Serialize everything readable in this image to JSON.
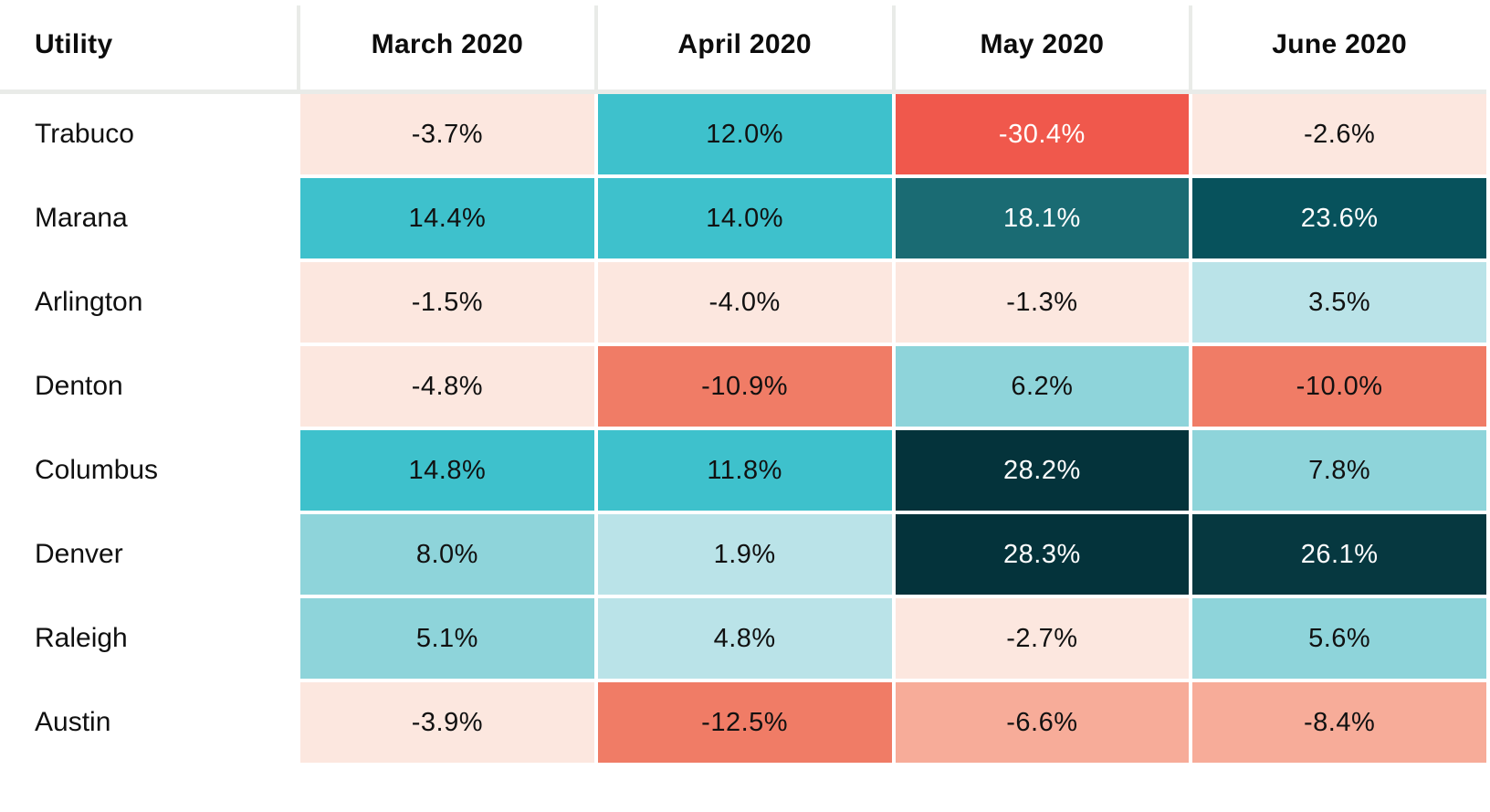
{
  "table": {
    "columns": [
      "Utility",
      "March 2020",
      "April 2020",
      "May 2020",
      "June 2020"
    ],
    "rows": [
      {
        "utility": "Trabuco",
        "cells": [
          {
            "value": "-3.7%",
            "bg": "#fce7df",
            "fg": "#111111"
          },
          {
            "value": "12.0%",
            "bg": "#3ec1cc",
            "fg": "#111111"
          },
          {
            "value": "-30.4%",
            "bg": "#f0584c",
            "fg": "#ffffff"
          },
          {
            "value": "-2.6%",
            "bg": "#fce7df",
            "fg": "#111111"
          }
        ]
      },
      {
        "utility": "Marana",
        "cells": [
          {
            "value": "14.4%",
            "bg": "#3ec1cc",
            "fg": "#111111"
          },
          {
            "value": "14.0%",
            "bg": "#3ec1cc",
            "fg": "#111111"
          },
          {
            "value": "18.1%",
            "bg": "#1a6b73",
            "fg": "#ffffff"
          },
          {
            "value": "23.6%",
            "bg": "#07525c",
            "fg": "#ffffff"
          }
        ]
      },
      {
        "utility": "Arlington",
        "cells": [
          {
            "value": "-1.5%",
            "bg": "#fce7df",
            "fg": "#111111"
          },
          {
            "value": "-4.0%",
            "bg": "#fce7df",
            "fg": "#111111"
          },
          {
            "value": "-1.3%",
            "bg": "#fce7df",
            "fg": "#111111"
          },
          {
            "value": "3.5%",
            "bg": "#bae3e8",
            "fg": "#111111"
          }
        ]
      },
      {
        "utility": "Denton",
        "cells": [
          {
            "value": "-4.8%",
            "bg": "#fce7df",
            "fg": "#111111"
          },
          {
            "value": "-10.9%",
            "bg": "#f07c66",
            "fg": "#111111"
          },
          {
            "value": "6.2%",
            "bg": "#8ed4da",
            "fg": "#111111"
          },
          {
            "value": "-10.0%",
            "bg": "#f07c66",
            "fg": "#111111"
          }
        ]
      },
      {
        "utility": "Columbus",
        "cells": [
          {
            "value": "14.8%",
            "bg": "#3ec1cc",
            "fg": "#111111"
          },
          {
            "value": "11.8%",
            "bg": "#3ec1cc",
            "fg": "#111111"
          },
          {
            "value": "28.2%",
            "bg": "#04333b",
            "fg": "#ffffff"
          },
          {
            "value": "7.8%",
            "bg": "#8ed4da",
            "fg": "#111111"
          }
        ]
      },
      {
        "utility": "Denver",
        "cells": [
          {
            "value": "8.0%",
            "bg": "#8ed4da",
            "fg": "#111111"
          },
          {
            "value": "1.9%",
            "bg": "#bae3e8",
            "fg": "#111111"
          },
          {
            "value": "28.3%",
            "bg": "#04333b",
            "fg": "#ffffff"
          },
          {
            "value": "26.1%",
            "bg": "#063840",
            "fg": "#ffffff"
          }
        ]
      },
      {
        "utility": "Raleigh",
        "cells": [
          {
            "value": "5.1%",
            "bg": "#8ed4da",
            "fg": "#111111"
          },
          {
            "value": "4.8%",
            "bg": "#bae3e8",
            "fg": "#111111"
          },
          {
            "value": "-2.7%",
            "bg": "#fce7df",
            "fg": "#111111"
          },
          {
            "value": "5.6%",
            "bg": "#8ed4da",
            "fg": "#111111"
          }
        ]
      },
      {
        "utility": "Austin",
        "cells": [
          {
            "value": "-3.9%",
            "bg": "#fce7df",
            "fg": "#111111"
          },
          {
            "value": "-12.5%",
            "bg": "#f07c66",
            "fg": "#111111"
          },
          {
            "value": "-6.6%",
            "bg": "#f7ac99",
            "fg": "#111111"
          },
          {
            "value": "-8.4%",
            "bg": "#f7ac99",
            "fg": "#111111"
          }
        ]
      }
    ],
    "separator_color": "#e9ebe8"
  },
  "chart_data": {
    "type": "heatmap",
    "title": "",
    "x_categories": [
      "March 2020",
      "April 2020",
      "May 2020",
      "June 2020"
    ],
    "y_categories": [
      "Trabuco",
      "Marana",
      "Arlington",
      "Denton",
      "Columbus",
      "Denver",
      "Raleigh",
      "Austin"
    ],
    "values_percent": [
      [
        -3.7,
        12.0,
        -30.4,
        -2.6
      ],
      [
        14.4,
        14.0,
        18.1,
        23.6
      ],
      [
        -1.5,
        -4.0,
        -1.3,
        3.5
      ],
      [
        -4.8,
        -10.9,
        6.2,
        -10.0
      ],
      [
        14.8,
        11.8,
        28.2,
        7.8
      ],
      [
        8.0,
        1.9,
        28.3,
        26.1
      ],
      [
        5.1,
        4.8,
        -2.7,
        5.6
      ],
      [
        -3.9,
        -12.5,
        -6.6,
        -8.4
      ]
    ],
    "corner_label": "Utility",
    "colorscale": {
      "kind": "diverging",
      "negative_strong": "#f0584c",
      "negative_mid": "#f07c66",
      "negative_soft": "#f7ac99",
      "negative_faint": "#fce7df",
      "positive_faint": "#bae3e8",
      "positive_soft": "#8ed4da",
      "positive_mid": "#3ec1cc",
      "positive_strong": "#1a6b73",
      "positive_stronger": "#07525c",
      "positive_strongest": "#04333b"
    },
    "legend_position": "none",
    "grid": "white gaps between cells"
  }
}
